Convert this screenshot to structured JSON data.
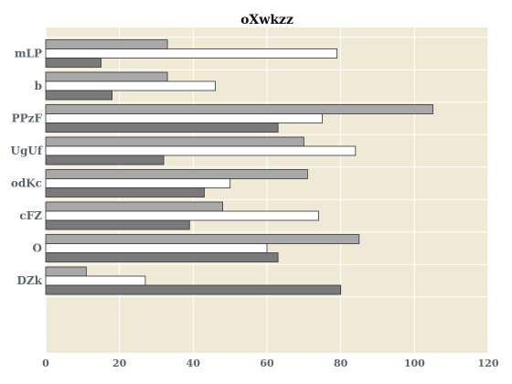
{
  "chart_data": {
    "type": "bar",
    "orientation": "horizontal",
    "title": "oXwkzz",
    "xlabel": "",
    "ylabel": "",
    "categories": [
      "mLP",
      "b",
      "PPzF",
      "UgUf",
      "odKc",
      "cFZ",
      "O",
      "DZk"
    ],
    "series": [
      {
        "values": [
          33,
          33,
          105,
          70,
          71,
          48,
          85,
          11
        ],
        "color": "#a8a8a8"
      },
      {
        "values": [
          79,
          46,
          75,
          84,
          50,
          74,
          60,
          27
        ],
        "color": "#ffffff"
      },
      {
        "values": [
          15,
          18,
          63,
          32,
          43,
          39,
          63,
          80
        ],
        "color": "#7a7a7a"
      }
    ],
    "xlim": [
      0,
      120
    ],
    "xticks": [
      0,
      20,
      40,
      60,
      80,
      100,
      120
    ],
    "grid": true,
    "legend": "none",
    "plot_background": "#f0e9d6",
    "grid_color": "#ffffff"
  }
}
